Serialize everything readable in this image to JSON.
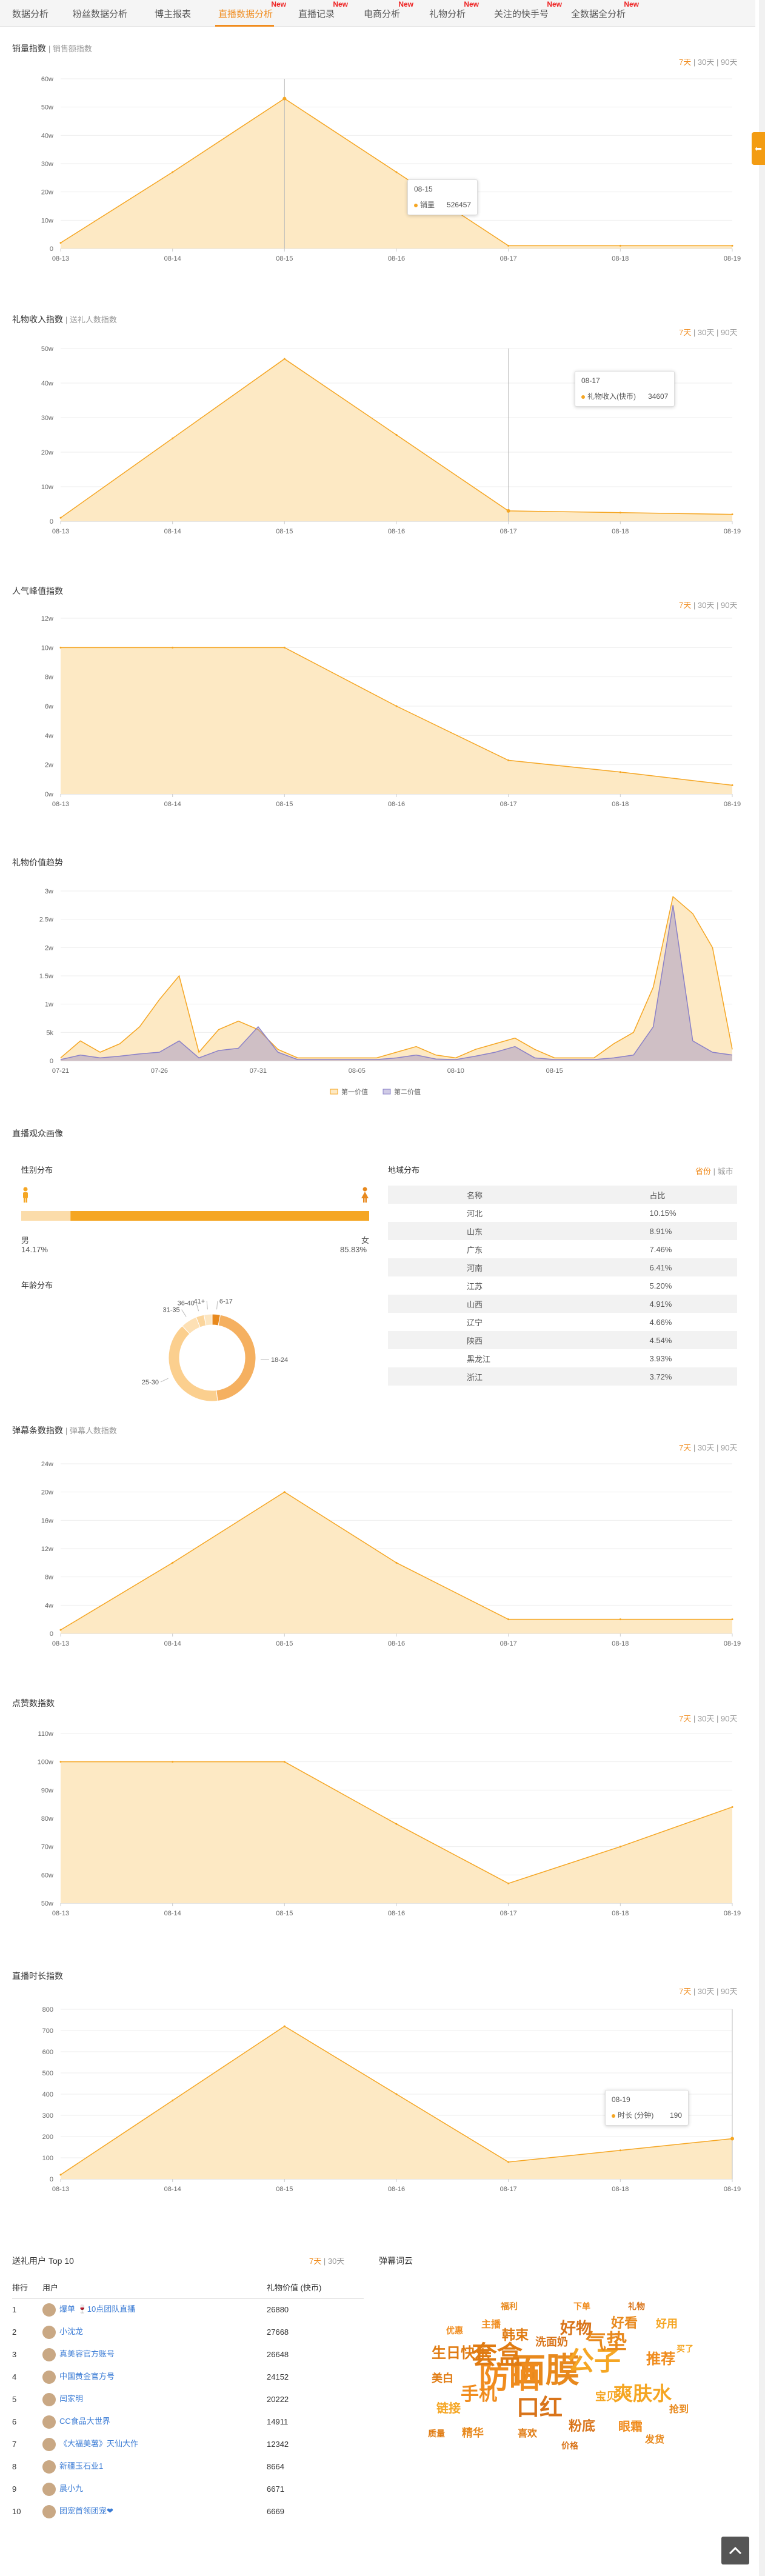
{
  "tabs": [
    {
      "label": "数据分析",
      "new": false
    },
    {
      "label": "粉丝数据分析",
      "new": false
    },
    {
      "label": "博主报表",
      "new": false
    },
    {
      "label": "直播数据分析",
      "new": true,
      "active": true
    },
    {
      "label": "直播记录",
      "new": true
    },
    {
      "label": "电商分析",
      "new": true
    },
    {
      "label": "礼物分析",
      "new": true
    },
    {
      "label": "关注的快手号",
      "new": true
    },
    {
      "label": "全数据全分析",
      "new": true
    }
  ],
  "new_label": "New",
  "side_tab": "⬅",
  "range": {
    "d7": "7天",
    "d30": "30天",
    "d90": "90天",
    "sep": "|"
  },
  "charts": {
    "sales": {
      "title": "销量指数",
      "sub": "| 销售额指数",
      "x": [
        "08-13",
        "08-14",
        "08-15",
        "08-16",
        "08-17",
        "08-18",
        "08-19"
      ],
      "values": [
        2,
        27,
        53,
        27,
        1,
        1,
        1
      ],
      "yticks": [
        "0",
        "10w",
        "20w",
        "30w",
        "40w",
        "50w",
        "60w"
      ],
      "ymax": 60,
      "tooltip": {
        "date": "08-15",
        "label": "销量",
        "value": "526457"
      }
    },
    "gift": {
      "title": "礼物收入指数",
      "sub": "| 送礼人数指数",
      "x": [
        "08-13",
        "08-14",
        "08-15",
        "08-16",
        "08-17",
        "08-18",
        "08-19"
      ],
      "values": [
        1,
        24,
        47,
        25,
        3,
        2.5,
        2
      ],
      "yticks": [
        "0",
        "10w",
        "20w",
        "30w",
        "40w",
        "50w"
      ],
      "ymax": 50,
      "tooltip": {
        "date": "08-17",
        "label": "礼物收入(快币)",
        "value": "34607"
      }
    },
    "popularity": {
      "title": "人气峰值指数",
      "x": [
        "08-13",
        "08-14",
        "08-15",
        "08-16",
        "08-17",
        "08-18",
        "08-19"
      ],
      "values": [
        10,
        10,
        10,
        6,
        2.3,
        1.5,
        0.6
      ],
      "yticks": [
        "0w",
        "2w",
        "4w",
        "6w",
        "8w",
        "10w",
        "12w"
      ],
      "ymax": 12
    },
    "giftvalue": {
      "title": "礼物价值趋势",
      "x": [
        "07-21",
        "07-26",
        "07-31",
        "08-05",
        "08-10",
        "08-15"
      ],
      "series1": [
        0.05,
        0.35,
        0.15,
        0.3,
        0.6,
        1.08,
        1.5,
        0.15,
        0.55,
        0.7,
        0.55,
        0.2,
        0.05,
        0.05,
        0.05,
        0.05,
        0.05,
        0.15,
        0.25,
        0.1,
        0.05,
        0.2,
        0.3,
        0.4,
        0.2,
        0.05,
        0.05,
        0.05,
        0.3,
        0.5,
        1.3,
        2.9,
        2.6,
        2.0,
        0.2
      ],
      "series2": [
        0.02,
        0.1,
        0.05,
        0.08,
        0.12,
        0.15,
        0.35,
        0.05,
        0.18,
        0.22,
        0.6,
        0.15,
        0.02,
        0.02,
        0.02,
        0.02,
        0.02,
        0.05,
        0.1,
        0.03,
        0.02,
        0.08,
        0.15,
        0.25,
        0.05,
        0.02,
        0.02,
        0.02,
        0.05,
        0.1,
        0.6,
        2.75,
        0.35,
        0.15,
        0.1
      ],
      "yticks": [
        "0",
        "5k",
        "1w",
        "1.5w",
        "2w",
        "2.5w",
        "3w"
      ],
      "ymax": 3,
      "legend": [
        "第一价值",
        "第二价值"
      ]
    },
    "danmaku": {
      "title": "弹幕条数指数",
      "sub": "| 弹幕人数指数",
      "x": [
        "08-13",
        "08-14",
        "08-15",
        "08-16",
        "08-17",
        "08-18",
        "08-19"
      ],
      "values": [
        0.5,
        10,
        20,
        10,
        2,
        2,
        2
      ],
      "yticks": [
        "0",
        "4w",
        "8w",
        "12w",
        "16w",
        "20w",
        "24w"
      ],
      "ymax": 24
    },
    "likes": {
      "title": "点赞数指数",
      "x": [
        "08-13",
        "08-14",
        "08-15",
        "08-16",
        "08-17",
        "08-18",
        "08-19"
      ],
      "values": [
        100,
        100,
        100,
        78,
        57,
        70,
        84
      ],
      "yticks": [
        "50w",
        "60w",
        "70w",
        "80w",
        "90w",
        "100w",
        "110w"
      ],
      "ymin": 50,
      "ymax": 110
    },
    "duration": {
      "title": "直播时长指数",
      "x": [
        "08-13",
        "08-14",
        "08-15",
        "08-16",
        "08-17",
        "08-18",
        "08-19"
      ],
      "values": [
        20,
        370,
        720,
        400,
        80,
        135,
        190
      ],
      "yticks": [
        "0",
        "100",
        "200",
        "300",
        "400",
        "500",
        "600",
        "700",
        "800"
      ],
      "ymax": 800,
      "tooltip": {
        "date": "08-19",
        "label": "时长 (分钟)",
        "value": "190"
      }
    }
  },
  "audience": {
    "title": "直播观众画像",
    "gender_title": "性别分布",
    "male_label": "男",
    "male_pct": "14.17%",
    "male_value": 14.17,
    "female_label": "女",
    "female_pct": "85.83%",
    "age_title": "年龄分布",
    "age": [
      {
        "label": "6-17",
        "value": 3
      },
      {
        "label": "18-24",
        "value": 45
      },
      {
        "label": "25-30",
        "value": 40
      },
      {
        "label": "31-35",
        "value": 6
      },
      {
        "label": "36-40",
        "value": 3
      },
      {
        "label": "41+",
        "value": 3
      }
    ],
    "region_title": "地域分布",
    "region_toggle": {
      "province": "省份",
      "city": "城市"
    },
    "region_head": {
      "name": "名称",
      "pct": "占比"
    },
    "regions": [
      {
        "name": "河北",
        "pct": "10.15%"
      },
      {
        "name": "山东",
        "pct": "8.91%"
      },
      {
        "name": "广东",
        "pct": "7.46%"
      },
      {
        "name": "河南",
        "pct": "6.41%"
      },
      {
        "name": "江苏",
        "pct": "5.20%"
      },
      {
        "name": "山西",
        "pct": "4.91%"
      },
      {
        "name": "辽宁",
        "pct": "4.66%"
      },
      {
        "name": "陕西",
        "pct": "4.54%"
      },
      {
        "name": "黑龙江",
        "pct": "3.93%"
      },
      {
        "name": "浙江",
        "pct": "3.72%"
      }
    ]
  },
  "top10": {
    "title": "送礼用户 Top 10",
    "head": {
      "rank": "排行",
      "user": "用户",
      "value": "礼物价值 (快币)"
    },
    "rows": [
      {
        "rank": "1",
        "user": "爆单 🍷10点团队直播",
        "value": "26880"
      },
      {
        "rank": "2",
        "user": "小沈龙",
        "value": "27668"
      },
      {
        "rank": "3",
        "user": "真美容官方账号",
        "value": "26648"
      },
      {
        "rank": "4",
        "user": "中国黄金官方号",
        "value": "24152"
      },
      {
        "rank": "5",
        "user": "闫家明",
        "value": "20222"
      },
      {
        "rank": "6",
        "user": "CC食品大世界",
        "value": "14911"
      },
      {
        "rank": "7",
        "user": "《大福美薯》天仙大作",
        "value": "12342"
      },
      {
        "rank": "8",
        "user": "新疆玉石业1",
        "value": "8664"
      },
      {
        "rank": "9",
        "user": "晨小九",
        "value": "6671"
      },
      {
        "rank": "10",
        "user": "团宠首领团宠❤",
        "value": "6669"
      }
    ]
  },
  "wordcloud": {
    "title": "弹幕词云",
    "words": [
      "面膜",
      "防晒",
      "公子",
      "套盒",
      "口红",
      "气垫",
      "手机",
      "爽肤水",
      "生日快乐",
      "好物",
      "好看",
      "推荐",
      "链接",
      "韩束",
      "粉底",
      "精华",
      "眼霜",
      "好用",
      "美白",
      "洗面奶",
      "抢到",
      "主播",
      "宝贝",
      "喜欢",
      "价格",
      "发货",
      "优惠",
      "买了",
      "质量",
      "礼物",
      "福利",
      "下单"
    ]
  }
}
